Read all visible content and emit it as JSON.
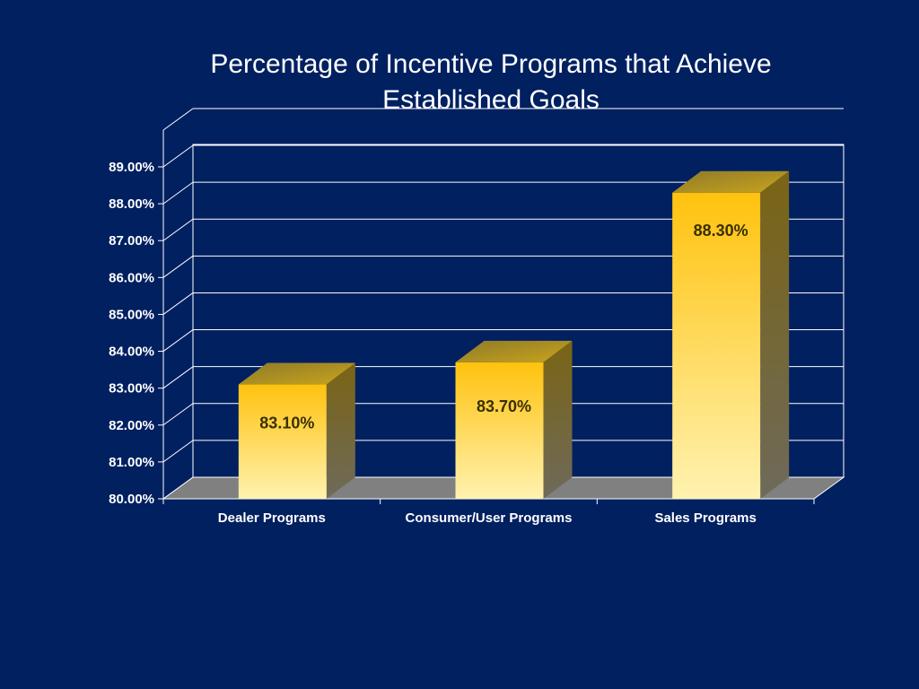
{
  "colors": {
    "background": "#002060",
    "bar_top": "#FFC20E",
    "bar_bottom": "#FFF2B0",
    "bar_side": "#7A6A1E",
    "floor": "#808080",
    "grid": "#FFFFFF"
  },
  "chart_data": {
    "type": "bar",
    "title": [
      "Percentage of Incentive Programs that Achieve",
      "Established Goals"
    ],
    "categories": [
      "Dealer Programs",
      "Consumer/User Programs",
      "Sales Programs"
    ],
    "values": [
      83.1,
      83.7,
      88.3
    ],
    "data_labels": [
      "83.10%",
      "83.70%",
      "88.30%"
    ],
    "y_ticks": [
      "80.00%",
      "81.00%",
      "82.00%",
      "83.00%",
      "84.00%",
      "85.00%",
      "86.00%",
      "87.00%",
      "88.00%",
      "89.00%"
    ],
    "ylim": [
      80,
      89
    ],
    "grid": true,
    "three_d": true,
    "legend": false,
    "xlabel": "",
    "ylabel": ""
  }
}
